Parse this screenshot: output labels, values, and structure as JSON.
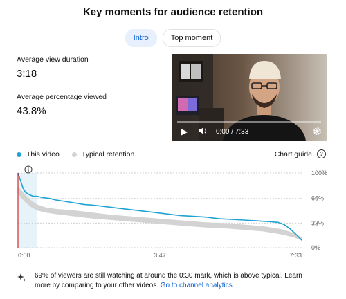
{
  "title": "Key moments for audience retention",
  "tabs": [
    {
      "label": "Intro",
      "active": true
    },
    {
      "label": "Top moment",
      "active": false
    }
  ],
  "stats": [
    {
      "label": "Average view duration",
      "value": "3:18"
    },
    {
      "label": "Average percentage viewed",
      "value": "43.8%"
    }
  ],
  "video": {
    "time": "0:00 / 7:33",
    "progress": 0.0
  },
  "legend": [
    {
      "label": "This video",
      "color": "#1fa3d4"
    },
    {
      "label": "Typical retention",
      "color": "#d3d3d3"
    }
  ],
  "chart_guide": "Chart guide",
  "chart_data": {
    "type": "line",
    "x_ticks": [
      "0:00",
      "3:47",
      "7:33"
    ],
    "y_ticks": [
      "100%",
      "66%",
      "33%",
      "0%"
    ],
    "ylim": [
      0,
      100
    ],
    "x_range_seconds": [
      0,
      453
    ],
    "highlight_range_seconds": [
      0,
      30
    ],
    "series": [
      {
        "name": "This video",
        "color": "#1fa3d4",
        "x_seconds": [
          0,
          4,
          8,
          12,
          18,
          24,
          30,
          40,
          50,
          60,
          75,
          90,
          105,
          120,
          140,
          160,
          180,
          200,
          220,
          240,
          260,
          280,
          300,
          320,
          340,
          360,
          380,
          400,
          415,
          425,
          435,
          445,
          453
        ],
        "values": [
          100,
          90,
          80,
          74,
          71,
          69,
          69,
          67,
          66,
          64,
          62,
          60,
          58,
          57,
          55,
          53,
          51,
          49,
          47,
          45,
          43,
          42,
          41,
          39,
          38,
          37,
          36,
          35,
          34,
          31,
          25,
          17,
          10
        ]
      },
      {
        "name": "Typical retention",
        "color": "#d3d3d3",
        "x_seconds": [
          0,
          10,
          20,
          30,
          45,
          60,
          90,
          120,
          150,
          180,
          210,
          240,
          270,
          300,
          330,
          360,
          390,
          420,
          440,
          453
        ],
        "upper": [
          82,
          72,
          64,
          58,
          54,
          52,
          50,
          47,
          44,
          42,
          40,
          38,
          36,
          34,
          33,
          31,
          29,
          25,
          20,
          14
        ],
        "lower": [
          72,
          62,
          55,
          50,
          47,
          45,
          42,
          39,
          37,
          35,
          33,
          31,
          29,
          27,
          26,
          24,
          22,
          18,
          14,
          10
        ]
      }
    ]
  },
  "footnote": {
    "text": "69% of viewers are still watching at around the 0:30 mark, which is above typical. Learn more by comparing to your other videos. ",
    "link": "Go to channel analytics."
  }
}
